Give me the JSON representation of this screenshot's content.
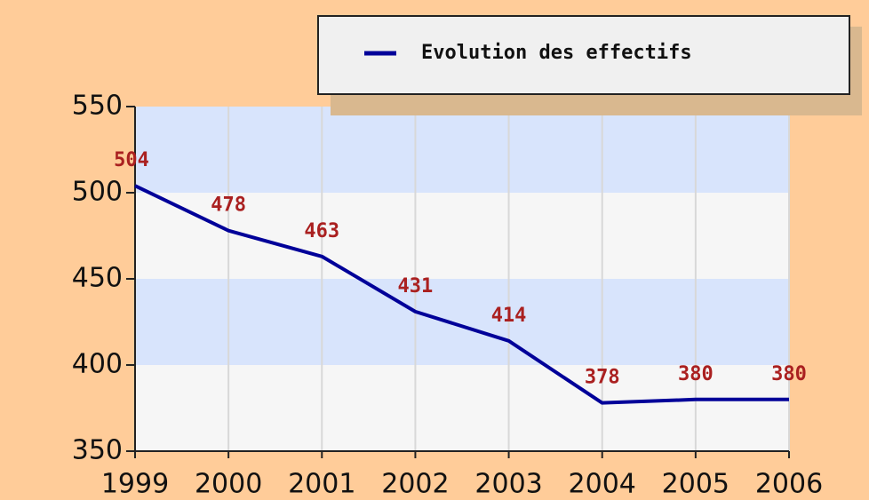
{
  "chart_data": {
    "type": "line",
    "categories": [
      "1999",
      "2000",
      "2001",
      "2002",
      "2003",
      "2004",
      "2005",
      "2006"
    ],
    "series": [
      {
        "name": "Evolution des effectifs",
        "color": "#000099",
        "values": [
          504,
          478,
          463,
          431,
          414,
          378,
          380,
          380
        ]
      }
    ],
    "ylim": [
      350,
      550
    ],
    "yticks": [
      350,
      400,
      450,
      500,
      550
    ],
    "grid": true,
    "legend": "top-right"
  }
}
